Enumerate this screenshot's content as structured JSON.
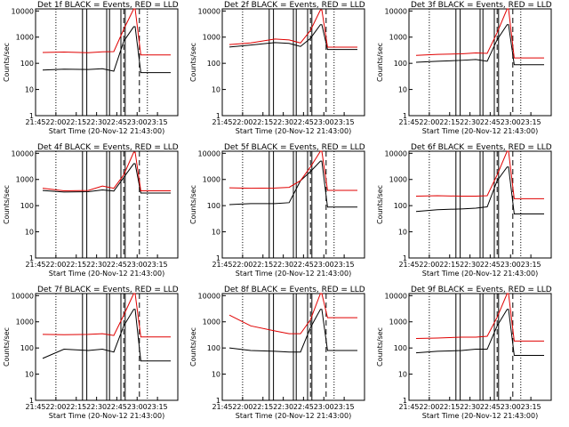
{
  "figure": {
    "ylabel": "Counts/sec",
    "xlabel": "Start Time (20-Nov-12 21:43:00)",
    "x_ticks": [
      "21:45",
      "22:00",
      "22:15",
      "22:30",
      "22:45",
      "23:00",
      "23:15"
    ],
    "y_ticks": [
      "1",
      "10",
      "100",
      "1000",
      "10000"
    ],
    "colors": {
      "events": "#000000",
      "lld": "#e00000",
      "axes": "#000000",
      "background": "#ffffff"
    }
  },
  "chart_data": [
    {
      "type": "line",
      "title": "Det 1f BLACK = Events, RED = LLD",
      "ylim": [
        1,
        12000
      ],
      "yscale": "log",
      "series": [
        {
          "name": "Events",
          "values": [
            55,
            60,
            58,
            62,
            50,
            700,
            2500
          ]
        },
        {
          "name": "LLD",
          "values": [
            260,
            270,
            255,
            275,
            280,
            2000,
            12000
          ]
        }
      ]
    },
    {
      "type": "line",
      "title": "Det 2f BLACK = Events, RED = LLD",
      "ylim": [
        1,
        12000
      ],
      "yscale": "log",
      "series": [
        {
          "name": "Events",
          "values": [
            420,
            500,
            620,
            580,
            440,
            900,
            3000
          ]
        },
        {
          "name": "LLD",
          "values": [
            520,
            600,
            850,
            780,
            600,
            1800,
            11000
          ]
        }
      ]
    },
    {
      "type": "line",
      "title": "Det 3f BLACK = Events, RED = LLD",
      "ylim": [
        1,
        12000
      ],
      "yscale": "log",
      "series": [
        {
          "name": "Events",
          "values": [
            110,
            120,
            130,
            140,
            120,
            800,
            3000
          ]
        },
        {
          "name": "LLD",
          "values": [
            200,
            220,
            230,
            250,
            240,
            1500,
            12000
          ]
        }
      ]
    },
    {
      "type": "line",
      "title": "Det 4f BLACK = Events, RED = LLD",
      "ylim": [
        1,
        12000
      ],
      "yscale": "log",
      "series": [
        {
          "name": "Events",
          "values": [
            380,
            330,
            340,
            400,
            360,
            1200,
            4000
          ]
        },
        {
          "name": "LLD",
          "values": [
            460,
            370,
            380,
            560,
            460,
            1500,
            11000
          ]
        }
      ]
    },
    {
      "type": "line",
      "title": "Det 5f BLACK = Events, RED = LLD",
      "ylim": [
        1,
        12000
      ],
      "yscale": "log",
      "series": [
        {
          "name": "Events",
          "values": [
            110,
            120,
            120,
            130,
            900,
            2000,
            5000
          ]
        },
        {
          "name": "LLD",
          "values": [
            480,
            460,
            470,
            500,
            900,
            3000,
            12000
          ]
        }
      ]
    },
    {
      "type": "line",
      "title": "Det 6f BLACK = Events, RED = LLD",
      "ylim": [
        1,
        12000
      ],
      "yscale": "log",
      "series": [
        {
          "name": "Events",
          "values": [
            60,
            70,
            75,
            80,
            90,
            900,
            3000
          ]
        },
        {
          "name": "LLD",
          "values": [
            230,
            240,
            230,
            230,
            240,
            1500,
            12000
          ]
        }
      ]
    },
    {
      "type": "line",
      "title": "Det 7f BLACK = Events, RED = LLD",
      "ylim": [
        1,
        12000
      ],
      "yscale": "log",
      "series": [
        {
          "name": "Events",
          "values": [
            40,
            90,
            80,
            90,
            70,
            700,
            3000
          ]
        },
        {
          "name": "LLD",
          "values": [
            330,
            320,
            330,
            350,
            300,
            1800,
            12000
          ]
        }
      ]
    },
    {
      "type": "line",
      "title": "Det 8f BLACK = Events, RED = LLD",
      "ylim": [
        1,
        12000
      ],
      "yscale": "log",
      "series": [
        {
          "name": "Events",
          "values": [
            100,
            80,
            75,
            70,
            70,
            600,
            3000
          ]
        },
        {
          "name": "LLD",
          "values": [
            1800,
            700,
            450,
            350,
            350,
            1200,
            12000
          ]
        }
      ]
    },
    {
      "type": "line",
      "title": "Det 9f BLACK = Events, RED = LLD",
      "ylim": [
        1,
        12000
      ],
      "yscale": "log",
      "series": [
        {
          "name": "Events",
          "values": [
            65,
            75,
            80,
            90,
            90,
            700,
            3000
          ]
        },
        {
          "name": "LLD",
          "values": [
            230,
            240,
            260,
            260,
            280,
            1500,
            12000
          ]
        }
      ]
    }
  ]
}
